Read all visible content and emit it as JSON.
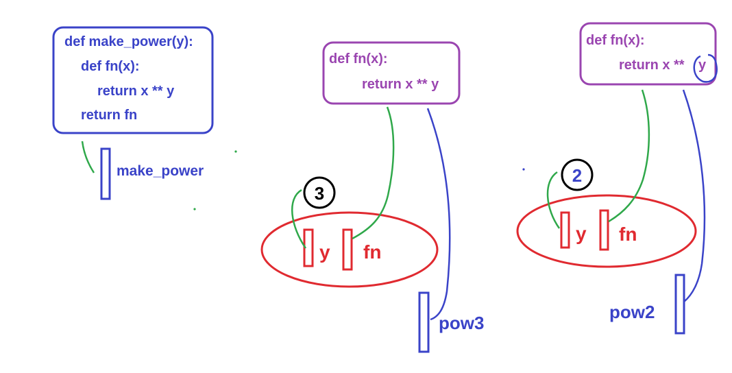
{
  "colors": {
    "blue": "#3a43c8",
    "purple": "#9a45b0",
    "red": "#e02a30",
    "green": "#2fa84a",
    "black": "#000000"
  },
  "make_power_code": [
    "def make_power(y):",
    "def fn(x):",
    "return x ** y",
    "return fn"
  ],
  "make_power_label": "make_power",
  "fn_code_a": [
    "def fn(x):",
    "return x ** y"
  ],
  "fn_code_b": [
    "def fn(x):",
    "return x ** ",
    "y"
  ],
  "frame_a": {
    "badge": "3",
    "var_y": "y",
    "var_fn": "fn",
    "binding": "pow3"
  },
  "frame_b": {
    "badge": "2",
    "var_y": "y",
    "var_fn": "fn",
    "binding": "pow2"
  }
}
